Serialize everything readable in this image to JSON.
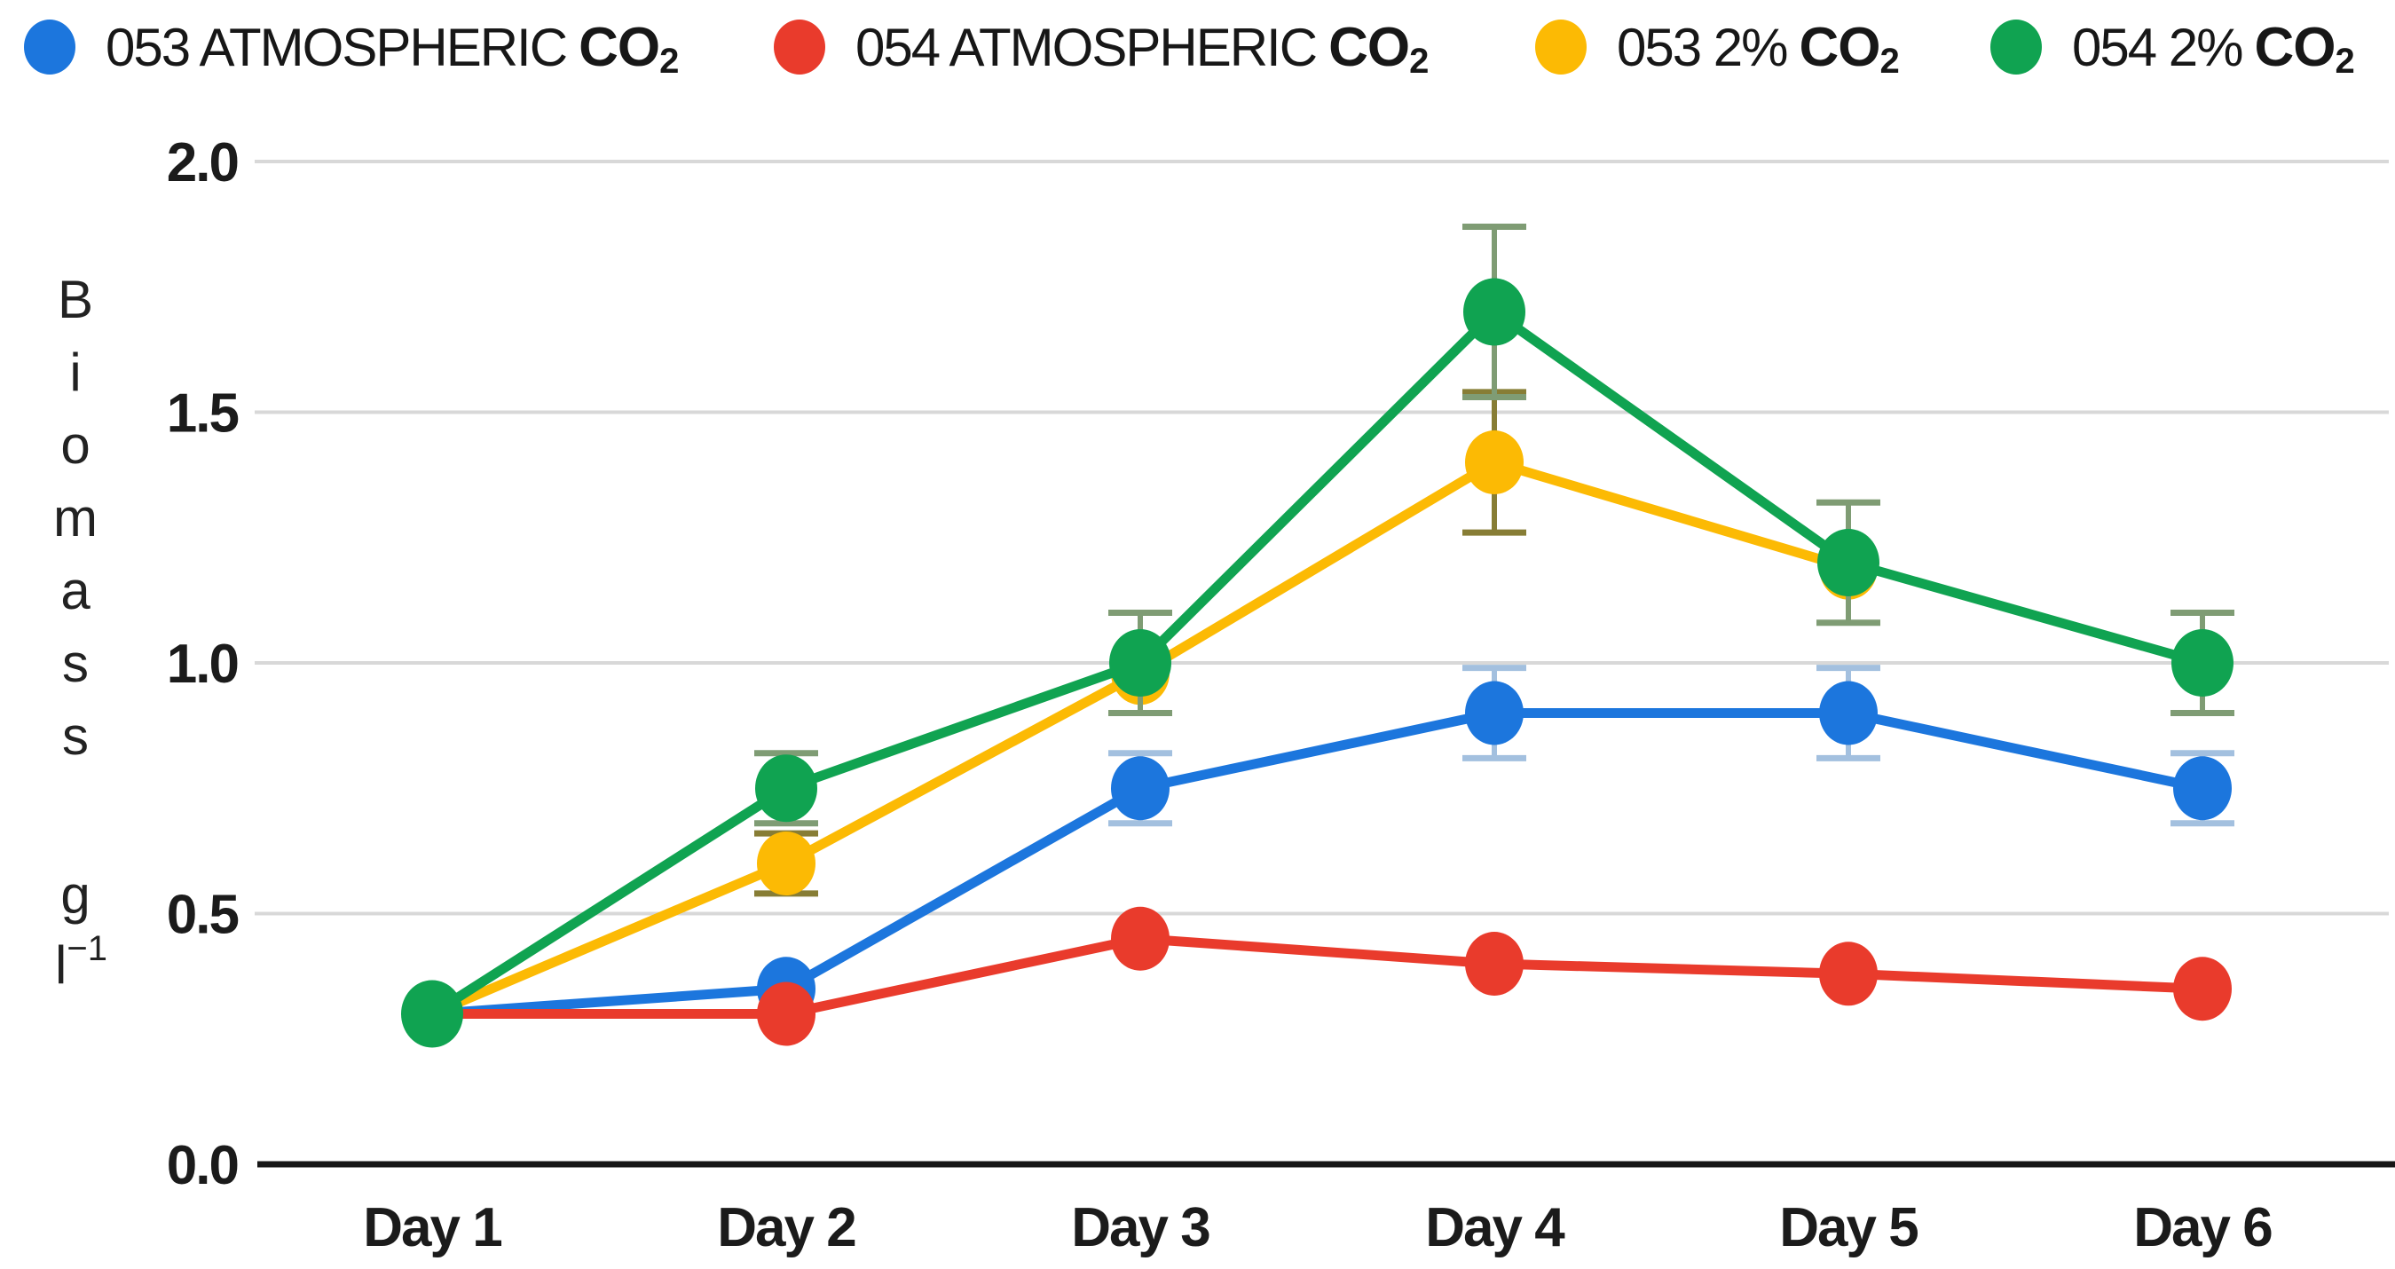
{
  "page": {
    "background": "#ffffff",
    "description": "Line chart of algae biomass over six days for four culture conditions"
  },
  "chart_data": {
    "type": "line",
    "title": "",
    "xlabel": "",
    "ylabel": "Biomass g l⁻¹",
    "ylabel_letters": [
      "B",
      "i",
      "o",
      "m",
      "a",
      "s",
      "s"
    ],
    "ylabel_unit": {
      "base": "g",
      "unit_letter": "l",
      "unit_exponent": "−1"
    },
    "categories": [
      "Day 1",
      "Day 2",
      "Day 3",
      "Day 4",
      "Day 5",
      "Day 6"
    ],
    "ylim": [
      0.0,
      2.0
    ],
    "yticks": [
      {
        "label": "2.0",
        "value": 2.0
      },
      {
        "label": "1.5",
        "value": 1.5
      },
      {
        "label": "1.0",
        "value": 1.0
      },
      {
        "label": "0.5",
        "value": 0.5
      },
      {
        "label": "0.0",
        "value": 0.0
      }
    ],
    "grid": true,
    "legend_position": "top",
    "colors": {
      "gridline": "#d8d8d8",
      "axis": "#161616",
      "text": "#1b1b1b"
    },
    "series": [
      {
        "name": "053 ATMOSPHERIC CO₂",
        "name_prefix": "053 ATMOSPHERIC",
        "gas_base": "CO",
        "gas_sub": "2",
        "color": "#1c76dd",
        "error_color": "#a3c0df",
        "values": [
          0.3,
          0.35,
          0.75,
          0.9,
          0.9,
          0.75
        ],
        "errors": [
          0,
          0,
          0.07,
          0.09,
          0.09,
          0.07
        ]
      },
      {
        "name": "054 ATMOSPHERIC CO₂",
        "name_prefix": "054 ATMOSPHERIC",
        "gas_base": "CO",
        "gas_sub": "2",
        "color": "#e93b2c",
        "error_color": "#f0a49b",
        "values": [
          0.3,
          0.3,
          0.45,
          0.4,
          0.38,
          0.35
        ],
        "errors": [
          0,
          0,
          0,
          0,
          0,
          0
        ]
      },
      {
        "name": "053 2% CO₂",
        "name_prefix": "053 2%",
        "gas_base": "CO",
        "gas_sub": "2",
        "color": "#fcba04",
        "error_color": "#877d35",
        "values": [
          0.3,
          0.6,
          0.98,
          1.4,
          1.19,
          null
        ],
        "errors": [
          0,
          0.06,
          0,
          0.14,
          0,
          0
        ]
      },
      {
        "name": "054 2% CO₂",
        "name_prefix": "054 2%",
        "gas_base": "CO",
        "gas_sub": "2",
        "color": "#10a351",
        "error_color": "#7f9c74",
        "values": [
          0.3,
          0.75,
          1.0,
          1.7,
          1.2,
          1.0
        ],
        "errors": [
          0,
          0.07,
          0.1,
          0.17,
          0.12,
          0.1
        ]
      }
    ]
  }
}
